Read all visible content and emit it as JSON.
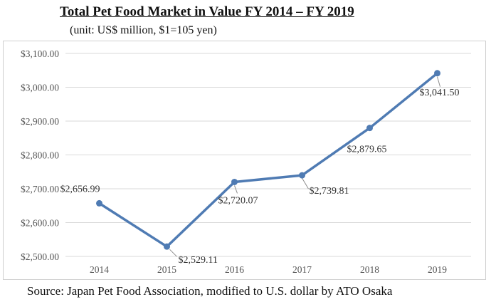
{
  "header": {
    "title": "Total Pet Food Market in Value FY 2014 – FY 2019",
    "subtitle": "(unit: US$ million, $1=105 yen)"
  },
  "footer": {
    "source": "Source: Japan Pet Food Association, modified to U.S. dollar by ATO Osaka"
  },
  "colors": {
    "line": "#4f7bb3",
    "grid": "#d9d9d9",
    "leader": "#8c8c8c"
  },
  "chart_data": {
    "type": "line",
    "title": "Total Pet Food Market in Value FY 2014 – FY 2019",
    "subtitle": "(unit: US$ million, $1=105 yen)",
    "xlabel": "",
    "ylabel": "",
    "categories": [
      "2014",
      "2015",
      "2016",
      "2017",
      "2018",
      "2019"
    ],
    "series": [
      {
        "name": "Total Pet Food Market",
        "values": [
          2656.99,
          2529.11,
          2720.07,
          2739.81,
          2879.65,
          3041.5
        ]
      }
    ],
    "data_labels": [
      "$2,656.99",
      "$2,529.11",
      "$2,720.07",
      "$2,739.81",
      "$2,879.65",
      "$3,041.50"
    ],
    "ylim": [
      2500,
      3100
    ],
    "yticks": [
      2500,
      2600,
      2700,
      2800,
      2900,
      3000,
      3100
    ],
    "ytick_labels": [
      "$2,500.00",
      "$2,600.00",
      "$2,700.00",
      "$2,800.00",
      "$2,900.00",
      "$3,000.00",
      "$3,100.00"
    ],
    "grid": true,
    "legend": "none"
  }
}
